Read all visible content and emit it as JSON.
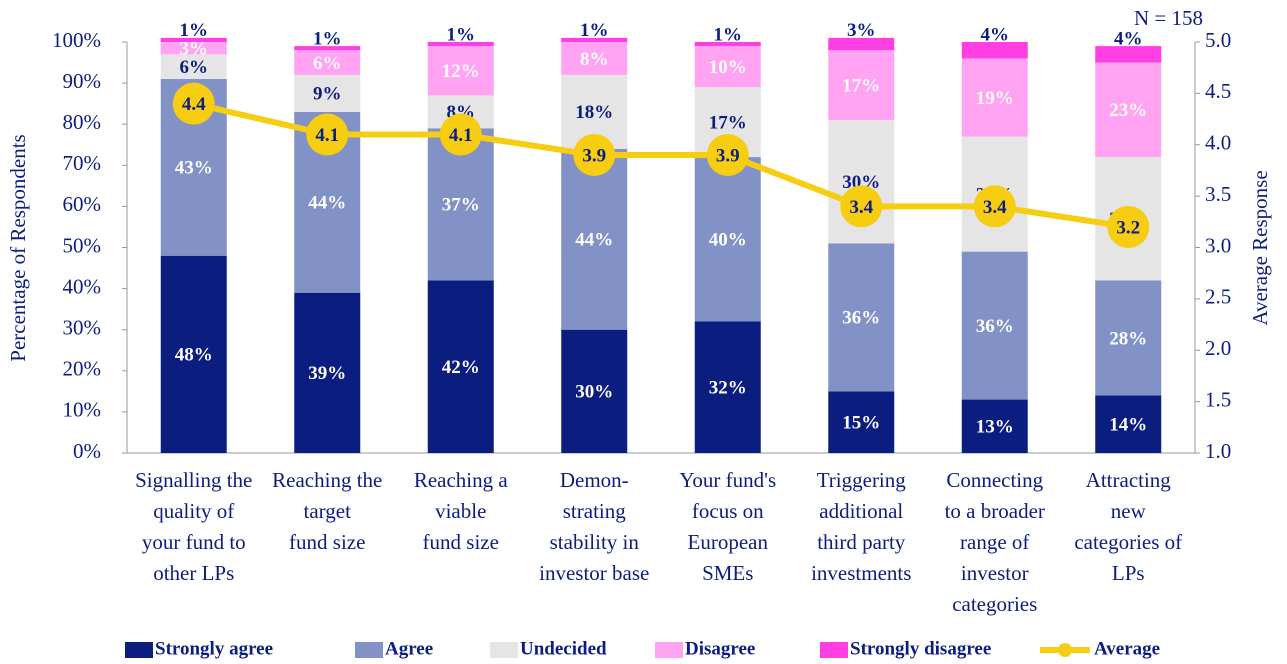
{
  "chart_data": {
    "type": "bar",
    "stacked": true,
    "annotation": "N = 158",
    "ylabel": "Percentage of Respondents",
    "y2label": "Average Response",
    "categories": [
      [
        "Signalling the",
        "quality of",
        "your fund to",
        "other LPs"
      ],
      [
        "Reaching the",
        "target",
        "fund size"
      ],
      [
        "Reaching a",
        "viable",
        "fund size"
      ],
      [
        "Demon-",
        "strating",
        "stability in",
        "investor base"
      ],
      [
        "Your fund's",
        "focus on",
        "European",
        "SMEs"
      ],
      [
        "Triggering",
        "additional",
        "third party",
        "investments"
      ],
      [
        "Connecting",
        "to a broader",
        "range of",
        "investor",
        "categories"
      ],
      [
        "Attracting",
        "new",
        "categories of",
        "LPs"
      ]
    ],
    "series": [
      {
        "name": "Strongly agree",
        "color": "#0c1d80",
        "label_color": "#ffffff",
        "values": [
          48,
          39,
          42,
          30,
          32,
          15,
          13,
          14
        ],
        "value_labels": [
          "48%",
          "39%",
          "42%",
          "30%",
          "32%",
          "15%",
          "13%",
          "14%"
        ]
      },
      {
        "name": "Agree",
        "color": "#8291c6",
        "label_color": "#ffffff",
        "values": [
          43,
          44,
          37,
          44,
          40,
          36,
          36,
          28
        ],
        "value_labels": [
          "43%",
          "44%",
          "37%",
          "44%",
          "40%",
          "36%",
          "36%",
          "28%"
        ]
      },
      {
        "name": "Undecided",
        "color": "#e5e5e5",
        "label_color": "#0c1d80",
        "values": [
          6,
          9,
          8,
          18,
          17,
          30,
          28,
          30
        ],
        "value_labels": [
          "6%",
          "9%",
          "8%",
          "18%",
          "17%",
          "30%",
          "28%",
          "30%"
        ]
      },
      {
        "name": "Disagree",
        "color": "#ffa3f2",
        "label_color": "#ffffff",
        "values": [
          3,
          6,
          12,
          8,
          10,
          17,
          19,
          23
        ],
        "value_labels": [
          "3%",
          "6%",
          "12%",
          "8%",
          "10%",
          "17%",
          "19%",
          "23%"
        ]
      },
      {
        "name": "Strongly disagree",
        "color": "#ff3fe3",
        "label_color": "#0c1d80",
        "values": [
          1,
          1,
          1,
          1,
          1,
          3,
          4,
          4
        ],
        "value_labels": [
          "1%",
          "1%",
          "1%",
          "1%",
          "1%",
          "3%",
          "4%",
          "4%"
        ]
      },
      {
        "name": "Average",
        "type": "line",
        "axis": "y2",
        "color": "#f6cd11",
        "values": [
          4.4,
          4.1,
          4.1,
          3.9,
          3.9,
          3.4,
          3.4,
          3.2
        ]
      }
    ],
    "ylim": [
      0,
      100
    ],
    "yticks": [
      {
        "value": 0,
        "label": "0%"
      },
      {
        "value": 10,
        "label": "10%"
      },
      {
        "value": 20,
        "label": "20%"
      },
      {
        "value": 30,
        "label": "30%"
      },
      {
        "value": 40,
        "label": "40%"
      },
      {
        "value": 50,
        "label": "50%"
      },
      {
        "value": 60,
        "label": "60%"
      },
      {
        "value": 70,
        "label": "70%"
      },
      {
        "value": 80,
        "label": "80%"
      },
      {
        "value": 90,
        "label": "90%"
      },
      {
        "value": 100,
        "label": "100%"
      }
    ],
    "y2lim": [
      1,
      5
    ],
    "y2ticks": [
      {
        "value": 1,
        "label": "1.0"
      },
      {
        "value": 1.5,
        "label": "1.5"
      },
      {
        "value": 2,
        "label": "2.0"
      },
      {
        "value": 2.5,
        "label": "2.5"
      },
      {
        "value": 3,
        "label": "3.0"
      },
      {
        "value": 3.5,
        "label": "3.5"
      },
      {
        "value": 4,
        "label": "4.0"
      },
      {
        "value": 4.5,
        "label": "4.5"
      },
      {
        "value": 5,
        "label": "5.0"
      }
    ],
    "legend": "bottom"
  }
}
